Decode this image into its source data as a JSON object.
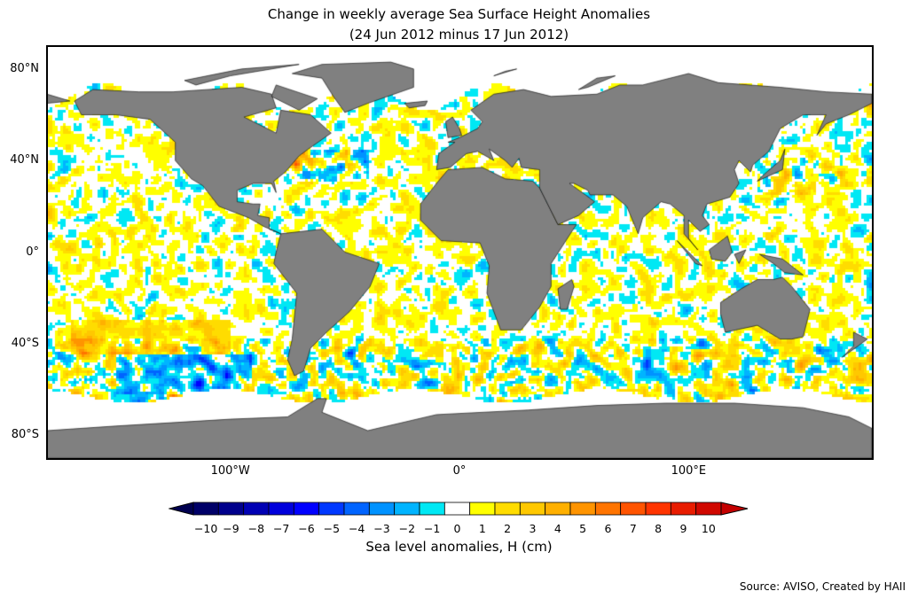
{
  "title_line1": "Change in weekly average Sea Surface Height Anomalies",
  "title_line2": "(24 Jun 2012 minus 17 Jun 2012)",
  "source": "Source: AVISO, Created by HAII",
  "chart_data": {
    "type": "heatmap",
    "projection": "equirectangular",
    "lat_ticks": [
      {
        "value": 80,
        "label": "80°N"
      },
      {
        "value": 40,
        "label": "40°N"
      },
      {
        "value": 0,
        "label": "0°"
      },
      {
        "value": -40,
        "label": "40°S"
      },
      {
        "value": -80,
        "label": "80°S"
      }
    ],
    "lon_ticks": [
      {
        "value": -100,
        "label": "100°W"
      },
      {
        "value": 0,
        "label": "0°"
      },
      {
        "value": 100,
        "label": "100°E"
      }
    ],
    "lon_range": [
      -180,
      180
    ],
    "lat_range": [
      -90,
      90
    ],
    "colorbar": {
      "label": "Sea level anomalies, H (cm)",
      "ticks": [
        "−10",
        "−9",
        "−8",
        "−7",
        "−6",
        "−5",
        "−4",
        "−3",
        "−2",
        "−1",
        "0",
        "1",
        "2",
        "3",
        "4",
        "5",
        "6",
        "7",
        "8",
        "9",
        "10"
      ],
      "values": [
        -10,
        -9,
        -8,
        -7,
        -6,
        -5,
        -4,
        -3,
        -2,
        -1,
        0,
        1,
        2,
        3,
        4,
        5,
        6,
        7,
        8,
        9,
        10
      ],
      "colors": [
        "#000068",
        "#00008c",
        "#0000b4",
        "#0000dc",
        "#0000ff",
        "#0038ff",
        "#0064ff",
        "#0092ff",
        "#00b4ff",
        "#00e8f4",
        "#ffffff",
        "#ffff00",
        "#ffdc00",
        "#ffc800",
        "#ffb000",
        "#ff9400",
        "#ff7400",
        "#ff5400",
        "#ff3400",
        "#e81c00",
        "#d00800"
      ],
      "under_color": "#000050",
      "over_color": "#c40000"
    },
    "land_color": "#808080"
  }
}
